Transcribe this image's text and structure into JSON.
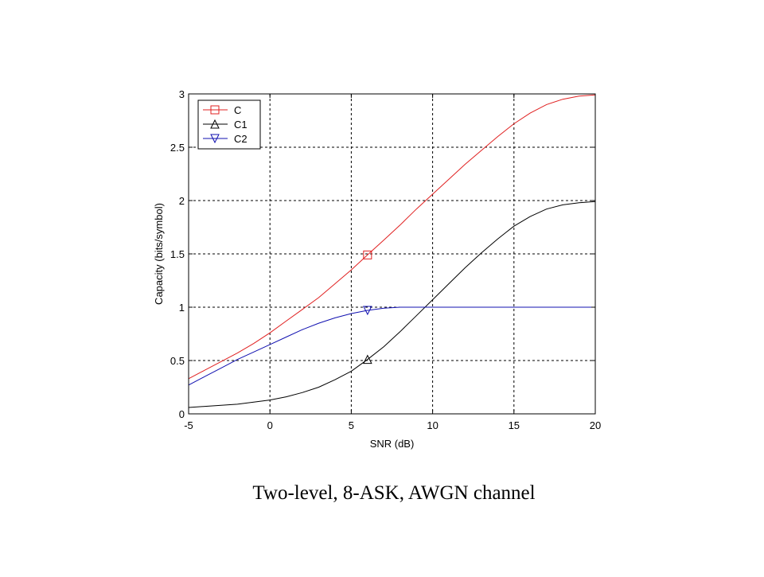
{
  "caption": "Two-level, 8-ASK, AWGN channel",
  "chart_data": {
    "type": "line",
    "title": "",
    "xlabel": "SNR (dB)",
    "ylabel": "Capacity (bits/symbol)",
    "xlim": [
      -5,
      20
    ],
    "ylim": [
      0,
      3
    ],
    "xticks": [
      -5,
      0,
      5,
      10,
      15,
      20
    ],
    "yticks": [
      0,
      0.5,
      1,
      1.5,
      2,
      2.5,
      3
    ],
    "grid": true,
    "grid_style": "dotted",
    "legend_position": "top-left",
    "series": [
      {
        "name": "C",
        "color": "#e02020",
        "marker": "square",
        "marker_at": [
          6,
          1.49
        ],
        "x": [
          -5,
          -4,
          -3,
          -2,
          -1,
          0,
          1,
          2,
          3,
          4,
          5,
          6,
          7,
          8,
          9,
          10,
          11,
          12,
          13,
          14,
          15,
          16,
          17,
          18,
          19,
          20
        ],
        "y": [
          0.33,
          0.41,
          0.49,
          0.57,
          0.66,
          0.76,
          0.87,
          0.98,
          1.09,
          1.22,
          1.35,
          1.49,
          1.63,
          1.77,
          1.92,
          2.06,
          2.2,
          2.34,
          2.47,
          2.6,
          2.72,
          2.82,
          2.9,
          2.95,
          2.98,
          2.99
        ]
      },
      {
        "name": "C1",
        "color": "#000000",
        "marker": "triangle-up",
        "marker_at": [
          6,
          0.51
        ],
        "x": [
          -5,
          -4,
          -3,
          -2,
          -1,
          0,
          1,
          2,
          3,
          4,
          5,
          6,
          7,
          8,
          9,
          10,
          11,
          12,
          13,
          14,
          15,
          16,
          17,
          18,
          19,
          20
        ],
        "y": [
          0.06,
          0.07,
          0.08,
          0.09,
          0.11,
          0.13,
          0.16,
          0.2,
          0.25,
          0.32,
          0.4,
          0.51,
          0.63,
          0.77,
          0.92,
          1.07,
          1.22,
          1.37,
          1.51,
          1.64,
          1.76,
          1.85,
          1.92,
          1.96,
          1.98,
          1.99
        ]
      },
      {
        "name": "C2",
        "color": "#1010b0",
        "marker": "triangle-down",
        "marker_at": [
          6,
          0.97
        ],
        "x": [
          -5,
          -4,
          -3,
          -2,
          -1,
          0,
          1,
          2,
          3,
          4,
          5,
          6,
          7,
          8,
          9,
          10,
          12,
          14,
          16,
          18,
          20
        ],
        "y": [
          0.27,
          0.35,
          0.43,
          0.51,
          0.58,
          0.65,
          0.72,
          0.79,
          0.85,
          0.9,
          0.94,
          0.97,
          0.99,
          1.0,
          1.0,
          1.0,
          1.0,
          1.0,
          1.0,
          1.0,
          1.0
        ]
      }
    ]
  }
}
